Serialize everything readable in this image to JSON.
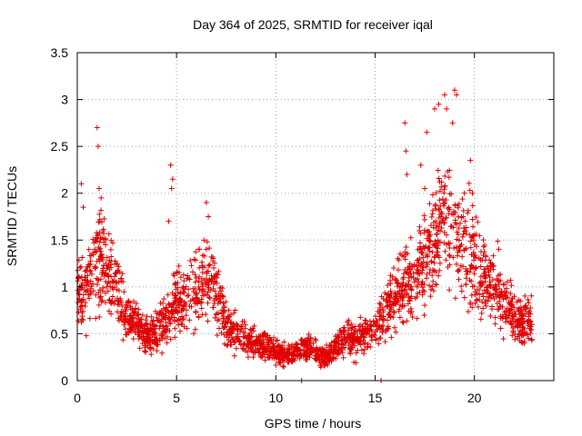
{
  "chart_data": {
    "type": "scatter",
    "title": "Day 364 of 2025, SRMTID for receiver iqal",
    "xlabel": "GPS time / hours",
    "ylabel": "SRMTID / TECUs",
    "xlim": [
      0,
      24
    ],
    "ylim": [
      0,
      3.5
    ],
    "xticks": [
      0,
      5,
      10,
      15,
      20
    ],
    "yticks": [
      0,
      0.5,
      1,
      1.5,
      2,
      2.5,
      3,
      3.5
    ],
    "xtick_labels": [
      "0",
      "5",
      "10",
      "15",
      "20"
    ],
    "ytick_labels": [
      "0",
      "0.5",
      "1",
      "1.5",
      "2",
      "2.5",
      "3",
      "3.5"
    ],
    "grid": true,
    "marker": "plus",
    "series": [
      {
        "name": "SRMTID",
        "color": "#e00000",
        "trend": [
          [
            0.0,
            0.95
          ],
          [
            0.5,
            1.0
          ],
          [
            1.0,
            1.35
          ],
          [
            1.5,
            1.2
          ],
          [
            2.0,
            0.95
          ],
          [
            2.5,
            0.7
          ],
          [
            3.0,
            0.6
          ],
          [
            3.5,
            0.45
          ],
          [
            4.0,
            0.55
          ],
          [
            4.5,
            0.65
          ],
          [
            5.0,
            0.85
          ],
          [
            5.5,
            0.9
          ],
          [
            6.0,
            0.95
          ],
          [
            6.5,
            1.05
          ],
          [
            7.0,
            0.95
          ],
          [
            7.5,
            0.6
          ],
          [
            8.0,
            0.5
          ],
          [
            8.5,
            0.45
          ],
          [
            9.0,
            0.4
          ],
          [
            9.5,
            0.38
          ],
          [
            10.0,
            0.3
          ],
          [
            10.5,
            0.28
          ],
          [
            11.0,
            0.3
          ],
          [
            11.5,
            0.35
          ],
          [
            12.0,
            0.3
          ],
          [
            12.5,
            0.25
          ],
          [
            13.0,
            0.35
          ],
          [
            13.5,
            0.45
          ],
          [
            14.0,
            0.45
          ],
          [
            14.5,
            0.5
          ],
          [
            15.0,
            0.55
          ],
          [
            15.5,
            0.75
          ],
          [
            16.0,
            0.9
          ],
          [
            16.5,
            1.0
          ],
          [
            17.0,
            1.05
          ],
          [
            17.5,
            1.3
          ],
          [
            18.0,
            1.6
          ],
          [
            18.5,
            1.75
          ],
          [
            19.0,
            1.6
          ],
          [
            19.5,
            1.45
          ],
          [
            20.0,
            1.3
          ],
          [
            20.5,
            1.05
          ],
          [
            21.0,
            1.05
          ],
          [
            21.5,
            0.85
          ],
          [
            22.0,
            0.7
          ],
          [
            22.5,
            0.6
          ],
          [
            22.9,
            0.6
          ]
        ],
        "spikes": [
          [
            0.2,
            2.1
          ],
          [
            0.3,
            1.85
          ],
          [
            1.0,
            2.7
          ],
          [
            1.05,
            2.5
          ],
          [
            1.1,
            2.05
          ],
          [
            1.2,
            1.95
          ],
          [
            4.7,
            2.3
          ],
          [
            4.8,
            2.15
          ],
          [
            4.75,
            2.05
          ],
          [
            4.6,
            1.7
          ],
          [
            6.5,
            1.9
          ],
          [
            6.6,
            1.75
          ],
          [
            11.3,
            0.0
          ],
          [
            15.3,
            0.0
          ],
          [
            16.5,
            2.75
          ],
          [
            16.55,
            2.45
          ],
          [
            16.6,
            2.2
          ],
          [
            17.6,
            2.65
          ],
          [
            18.0,
            2.9
          ],
          [
            18.2,
            2.95
          ],
          [
            18.5,
            3.05
          ],
          [
            18.6,
            2.9
          ],
          [
            19.0,
            3.1
          ],
          [
            19.1,
            3.05
          ],
          [
            18.9,
            2.75
          ],
          [
            17.3,
            2.3
          ],
          [
            17.5,
            2.05
          ],
          [
            19.8,
            2.35
          ],
          [
            19.9,
            2.0
          ],
          [
            20.3,
            1.05
          ]
        ]
      }
    ]
  }
}
